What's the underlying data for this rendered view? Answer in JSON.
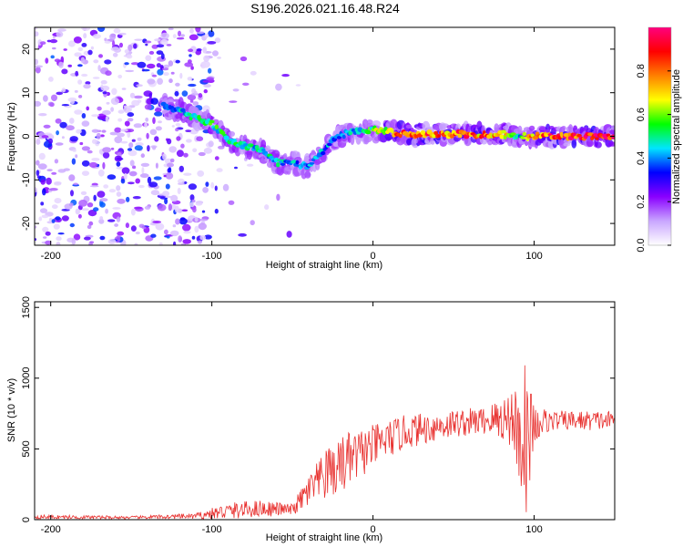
{
  "title": "S196.2026.021.16.48.R24",
  "chart_data": [
    {
      "type": "heatmap",
      "title": "S196.2026.021.16.48.R24",
      "xlabel": "Height of straight line (km)",
      "ylabel": "Frequency (Hz)",
      "xlim": [
        -210,
        150
      ],
      "ylim": [
        -25,
        25
      ],
      "xticks": [
        -200,
        -100,
        0,
        100
      ],
      "yticks": [
        -20,
        -10,
        0,
        10,
        20
      ],
      "colorbar": {
        "label": "Normalized spectral amplitude",
        "range": [
          0.0,
          1.0
        ],
        "ticks": [
          "0.0",
          "0.2",
          "0.4",
          "0.6",
          "0.8"
        ],
        "tick_values": [
          0.0,
          0.2,
          0.4,
          0.6,
          0.8
        ],
        "colors": [
          "#ffffff",
          "#c9a6ff",
          "#8a00ff",
          "#0000ff",
          "#00e5ff",
          "#00ff00",
          "#ffff00",
          "#ff8000",
          "#ff0000",
          "#ff007f"
        ]
      },
      "noise_region_x": [
        -210,
        -100
      ],
      "ridge": [
        {
          "x": -130,
          "f": 7,
          "a": 0.35
        },
        {
          "x": -120,
          "f": 6,
          "a": 0.45
        },
        {
          "x": -110,
          "f": 4,
          "a": 0.5
        },
        {
          "x": -100,
          "f": 3,
          "a": 0.5
        },
        {
          "x": -90,
          "f": -1,
          "a": 0.5
        },
        {
          "x": -80,
          "f": -2,
          "a": 0.45
        },
        {
          "x": -70,
          "f": -3,
          "a": 0.45
        },
        {
          "x": -60,
          "f": -6,
          "a": 0.45
        },
        {
          "x": -50,
          "f": -6,
          "a": 0.4
        },
        {
          "x": -40,
          "f": -7,
          "a": 0.4
        },
        {
          "x": -35,
          "f": -5,
          "a": 0.4
        },
        {
          "x": -25,
          "f": -1,
          "a": 0.4
        },
        {
          "x": -15,
          "f": 1,
          "a": 0.45
        },
        {
          "x": -5,
          "f": 1,
          "a": 0.45
        },
        {
          "x": 0,
          "f": 1.5,
          "a": 0.55
        },
        {
          "x": 10,
          "f": 1,
          "a": 0.7
        },
        {
          "x": 20,
          "f": 0.5,
          "a": 0.8
        },
        {
          "x": 40,
          "f": 0.5,
          "a": 0.8
        },
        {
          "x": 60,
          "f": 0.5,
          "a": 0.8
        },
        {
          "x": 80,
          "f": 0.5,
          "a": 0.75
        },
        {
          "x": 90,
          "f": 0,
          "a": 0.4
        },
        {
          "x": 100,
          "f": 0,
          "a": 0.8
        },
        {
          "x": 120,
          "f": 0,
          "a": 0.9
        },
        {
          "x": 150,
          "f": 0,
          "a": 0.9
        }
      ]
    },
    {
      "type": "line",
      "xlabel": "Height of straight line (km)",
      "ylabel": "SNR (10 * v/v)",
      "xlim": [
        -210,
        150
      ],
      "ylim": [
        0,
        1540
      ],
      "xticks": [
        -200,
        -100,
        0,
        100
      ],
      "yticks": [
        0,
        500,
        1000,
        1500
      ],
      "series": [
        {
          "name": "SNR",
          "color": "#e8312f",
          "envelope_x": [
            -210,
            -150,
            -110,
            -90,
            -70,
            -50,
            -40,
            -30,
            -20,
            0,
            20,
            50,
            70,
            85,
            95,
            100,
            110,
            130,
            150
          ],
          "envelope_y": [
            20,
            15,
            25,
            60,
            80,
            70,
            200,
            300,
            380,
            520,
            620,
            680,
            700,
            720,
            600,
            680,
            700,
            700,
            700
          ],
          "fluct_y": [
            15,
            10,
            20,
            60,
            60,
            40,
            120,
            180,
            220,
            150,
            120,
            100,
            100,
            200,
            600,
            150,
            70,
            70,
            70
          ]
        }
      ]
    }
  ]
}
